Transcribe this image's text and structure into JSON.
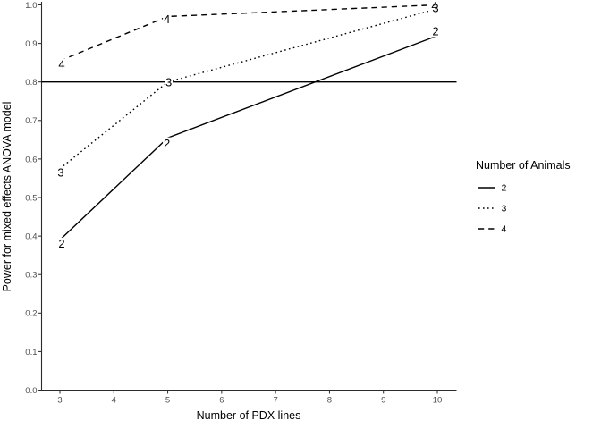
{
  "chart_data": {
    "type": "line",
    "title": "",
    "xlabel": "Number of PDX lines",
    "ylabel": "Power for mixed effects ANOVA model",
    "x": [
      3,
      5,
      10
    ],
    "xticks": [
      3,
      4,
      5,
      6,
      7,
      8,
      9,
      10
    ],
    "yticks": [
      "0.0",
      "0.1",
      "0.2",
      "0.3",
      "0.4",
      "0.5",
      "0.6",
      "0.7",
      "0.8",
      "0.9",
      "1.0"
    ],
    "xlim": [
      3,
      10
    ],
    "ylim": [
      0.0,
      1.0
    ],
    "grid": false,
    "reference_line_y": 0.8,
    "direct_point_labels": true,
    "series": [
      {
        "name": "2",
        "line_style": "solid",
        "values": [
          0.39,
          0.655,
          0.92
        ]
      },
      {
        "name": "3",
        "line_style": "dotted",
        "values": [
          0.575,
          0.8,
          0.99
        ]
      },
      {
        "name": "4",
        "line_style": "dashed",
        "values": [
          0.855,
          0.97,
          1.0
        ]
      }
    ],
    "legend": {
      "title": "Number of Animals",
      "position": "right",
      "entries": [
        {
          "label": "2",
          "style": "solid"
        },
        {
          "label": "3",
          "style": "dotted"
        },
        {
          "label": "4",
          "style": "dashed"
        }
      ]
    },
    "colors": {
      "line": "#000000",
      "axis": "#2b2b2b",
      "tick_label": "#4d4d4d",
      "background": "#ffffff"
    }
  }
}
